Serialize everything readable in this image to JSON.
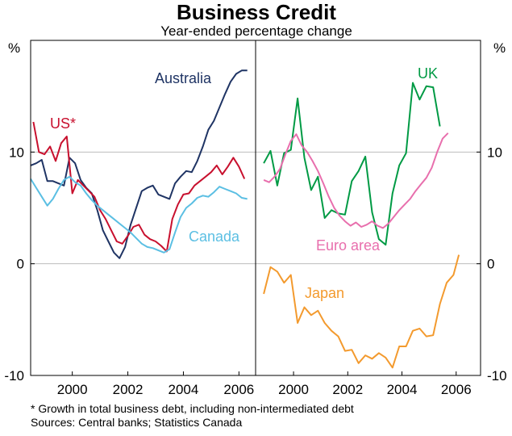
{
  "chart_data": {
    "type": "line",
    "title": "Business Credit",
    "subtitle": "Year-ended percentage change",
    "y_unit": "%",
    "ylim": [
      -10,
      20
    ],
    "y_ticks": [
      {
        "value": 10,
        "label": "10"
      },
      {
        "value": 0,
        "label": "0"
      },
      {
        "value": -10,
        "label": "-10"
      }
    ],
    "x_ticks": [
      {
        "value": 2000,
        "label": "2000"
      },
      {
        "value": 2002,
        "label": "2002"
      },
      {
        "value": 2004,
        "label": "2004"
      },
      {
        "value": 2006,
        "label": "2006"
      }
    ],
    "grid": true,
    "panels": [
      {
        "xlim": [
          1998.5,
          2006.6
        ],
        "series": [
          {
            "name": "Australia",
            "color": "#1f3464",
            "points": [
              [
                1998.5,
                8.8
              ],
              [
                1998.7,
                9.0
              ],
              [
                1998.9,
                9.3
              ],
              [
                1999.1,
                7.4
              ],
              [
                1999.3,
                7.4
              ],
              [
                1999.5,
                7.2
              ],
              [
                1999.7,
                7.0
              ],
              [
                1999.9,
                9.5
              ],
              [
                2000.1,
                9.0
              ],
              [
                2000.3,
                7.5
              ],
              [
                2000.5,
                6.8
              ],
              [
                2000.7,
                6.3
              ],
              [
                2000.9,
                4.8
              ],
              [
                2001.1,
                3.0
              ],
              [
                2001.3,
                2.0
              ],
              [
                2001.5,
                1.0
              ],
              [
                2001.7,
                0.5
              ],
              [
                2001.9,
                1.5
              ],
              [
                2002.1,
                3.5
              ],
              [
                2002.3,
                5.0
              ],
              [
                2002.5,
                6.5
              ],
              [
                2002.7,
                6.8
              ],
              [
                2002.9,
                7.0
              ],
              [
                2003.1,
                6.2
              ],
              [
                2003.3,
                6.0
              ],
              [
                2003.5,
                5.8
              ],
              [
                2003.7,
                7.2
              ],
              [
                2003.9,
                7.8
              ],
              [
                2004.1,
                8.3
              ],
              [
                2004.3,
                8.2
              ],
              [
                2004.5,
                9.2
              ],
              [
                2004.7,
                10.5
              ],
              [
                2004.9,
                12.0
              ],
              [
                2005.1,
                12.8
              ],
              [
                2005.3,
                14.0
              ],
              [
                2005.5,
                15.2
              ],
              [
                2005.7,
                16.3
              ],
              [
                2005.9,
                17.0
              ],
              [
                2006.1,
                17.3
              ],
              [
                2006.3,
                17.3
              ]
            ]
          },
          {
            "name": "US*",
            "color": "#c8102e",
            "points": [
              [
                1998.6,
                12.7
              ],
              [
                1998.8,
                10.0
              ],
              [
                1999.0,
                9.8
              ],
              [
                1999.2,
                10.5
              ],
              [
                1999.4,
                9.2
              ],
              [
                1999.6,
                10.8
              ],
              [
                1999.8,
                11.4
              ],
              [
                2000.0,
                6.3
              ],
              [
                2000.2,
                7.5
              ],
              [
                2000.4,
                7.0
              ],
              [
                2000.6,
                6.5
              ],
              [
                2000.8,
                6.0
              ],
              [
                2001.0,
                4.8
              ],
              [
                2001.2,
                4.0
              ],
              [
                2001.4,
                3.0
              ],
              [
                2001.6,
                2.0
              ],
              [
                2001.8,
                1.8
              ],
              [
                2002.0,
                2.5
              ],
              [
                2002.2,
                3.3
              ],
              [
                2002.4,
                3.5
              ],
              [
                2002.6,
                2.6
              ],
              [
                2002.8,
                2.2
              ],
              [
                2003.0,
                2.0
              ],
              [
                2003.2,
                1.6
              ],
              [
                2003.4,
                1.1
              ],
              [
                2003.6,
                4.0
              ],
              [
                2003.8,
                5.3
              ],
              [
                2004.0,
                6.2
              ],
              [
                2004.2,
                6.3
              ],
              [
                2004.4,
                7.0
              ],
              [
                2004.6,
                7.4
              ],
              [
                2004.8,
                7.8
              ],
              [
                2005.0,
                8.2
              ],
              [
                2005.2,
                8.8
              ],
              [
                2005.4,
                8.0
              ],
              [
                2005.6,
                8.7
              ],
              [
                2005.8,
                9.5
              ],
              [
                2006.0,
                8.7
              ],
              [
                2006.2,
                7.6
              ]
            ]
          },
          {
            "name": "Canada",
            "color": "#5bbfe3",
            "points": [
              [
                1998.5,
                7.6
              ],
              [
                1998.7,
                6.8
              ],
              [
                1998.9,
                6.0
              ],
              [
                1999.1,
                5.2
              ],
              [
                1999.3,
                5.8
              ],
              [
                1999.5,
                6.7
              ],
              [
                1999.7,
                7.5
              ],
              [
                1999.9,
                7.8
              ],
              [
                2000.1,
                7.3
              ],
              [
                2000.3,
                7.0
              ],
              [
                2000.5,
                6.3
              ],
              [
                2000.7,
                5.7
              ],
              [
                2000.9,
                5.2
              ],
              [
                2001.1,
                4.8
              ],
              [
                2001.3,
                4.4
              ],
              [
                2001.5,
                4.0
              ],
              [
                2001.7,
                3.6
              ],
              [
                2001.9,
                3.2
              ],
              [
                2002.1,
                2.8
              ],
              [
                2002.3,
                2.3
              ],
              [
                2002.5,
                1.8
              ],
              [
                2002.7,
                1.5
              ],
              [
                2002.9,
                1.4
              ],
              [
                2003.1,
                1.2
              ],
              [
                2003.3,
                1.0
              ],
              [
                2003.5,
                1.3
              ],
              [
                2003.7,
                2.8
              ],
              [
                2003.9,
                4.2
              ],
              [
                2004.1,
                5.0
              ],
              [
                2004.3,
                5.4
              ],
              [
                2004.5,
                5.9
              ],
              [
                2004.7,
                6.1
              ],
              [
                2004.9,
                6.0
              ],
              [
                2005.1,
                6.4
              ],
              [
                2005.3,
                6.9
              ],
              [
                2005.5,
                6.7
              ],
              [
                2005.7,
                6.5
              ],
              [
                2005.9,
                6.3
              ],
              [
                2006.1,
                5.9
              ],
              [
                2006.3,
                5.8
              ]
            ]
          }
        ],
        "labels": [
          {
            "text": "Australia",
            "series": "Australia"
          },
          {
            "text": "US*",
            "series": "US*"
          },
          {
            "text": "Canada",
            "series": "Canada"
          }
        ]
      },
      {
        "xlim": [
          1998.6,
          2006.9
        ],
        "series": [
          {
            "name": "UK",
            "color": "#009a44",
            "points": [
              [
                1998.9,
                9.0
              ],
              [
                1999.15,
                10.1
              ],
              [
                1999.4,
                7.0
              ],
              [
                1999.65,
                9.9
              ],
              [
                1999.9,
                10.2
              ],
              [
                2000.15,
                14.8
              ],
              [
                2000.4,
                9.5
              ],
              [
                2000.65,
                6.6
              ],
              [
                2000.9,
                7.8
              ],
              [
                2001.15,
                4.1
              ],
              [
                2001.4,
                4.8
              ],
              [
                2001.65,
                4.5
              ],
              [
                2001.9,
                4.4
              ],
              [
                2002.15,
                7.4
              ],
              [
                2002.4,
                8.3
              ],
              [
                2002.65,
                9.6
              ],
              [
                2002.9,
                4.6
              ],
              [
                2003.15,
                2.2
              ],
              [
                2003.4,
                1.7
              ],
              [
                2003.65,
                6.3
              ],
              [
                2003.9,
                8.8
              ],
              [
                2004.15,
                9.9
              ],
              [
                2004.4,
                16.2
              ],
              [
                2004.65,
                14.7
              ],
              [
                2004.9,
                15.9
              ],
              [
                2005.15,
                15.8
              ],
              [
                2005.4,
                12.3
              ]
            ]
          },
          {
            "name": "Euro area",
            "color": "#e86fad",
            "points": [
              [
                1998.9,
                7.5
              ],
              [
                1999.1,
                7.3
              ],
              [
                1999.3,
                7.8
              ],
              [
                1999.5,
                8.5
              ],
              [
                1999.7,
                9.8
              ],
              [
                1999.9,
                11.0
              ],
              [
                2000.1,
                11.6
              ],
              [
                2000.3,
                10.6
              ],
              [
                2000.5,
                10.0
              ],
              [
                2000.7,
                9.2
              ],
              [
                2000.9,
                8.3
              ],
              [
                2001.1,
                7.2
              ],
              [
                2001.3,
                6.0
              ],
              [
                2001.5,
                5.0
              ],
              [
                2001.7,
                4.3
              ],
              [
                2001.9,
                3.8
              ],
              [
                2002.1,
                3.4
              ],
              [
                2002.3,
                3.7
              ],
              [
                2002.5,
                3.3
              ],
              [
                2002.7,
                3.5
              ],
              [
                2002.9,
                3.8
              ],
              [
                2003.1,
                3.4
              ],
              [
                2003.3,
                3.2
              ],
              [
                2003.5,
                3.6
              ],
              [
                2003.7,
                4.2
              ],
              [
                2003.9,
                4.8
              ],
              [
                2004.1,
                5.3
              ],
              [
                2004.3,
                5.8
              ],
              [
                2004.5,
                6.5
              ],
              [
                2004.7,
                7.1
              ],
              [
                2004.9,
                7.7
              ],
              [
                2005.1,
                8.6
              ],
              [
                2005.3,
                10.0
              ],
              [
                2005.5,
                11.2
              ],
              [
                2005.7,
                11.7
              ]
            ]
          },
          {
            "name": "Japan",
            "color": "#f39a2e",
            "points": [
              [
                1998.9,
                -2.7
              ],
              [
                1999.15,
                -0.3
              ],
              [
                1999.4,
                -0.7
              ],
              [
                1999.65,
                -1.7
              ],
              [
                1999.9,
                -1.0
              ],
              [
                2000.15,
                -5.3
              ],
              [
                2000.4,
                -3.9
              ],
              [
                2000.65,
                -4.6
              ],
              [
                2000.9,
                -4.2
              ],
              [
                2001.15,
                -5.3
              ],
              [
                2001.4,
                -6.0
              ],
              [
                2001.65,
                -6.5
              ],
              [
                2001.9,
                -7.8
              ],
              [
                2002.15,
                -7.7
              ],
              [
                2002.4,
                -8.9
              ],
              [
                2002.65,
                -8.2
              ],
              [
                2002.9,
                -8.5
              ],
              [
                2003.15,
                -8.0
              ],
              [
                2003.4,
                -8.4
              ],
              [
                2003.65,
                -9.3
              ],
              [
                2003.9,
                -7.4
              ],
              [
                2004.15,
                -7.4
              ],
              [
                2004.4,
                -6.0
              ],
              [
                2004.65,
                -5.8
              ],
              [
                2004.9,
                -6.5
              ],
              [
                2005.15,
                -6.4
              ],
              [
                2005.4,
                -3.6
              ],
              [
                2005.65,
                -1.7
              ],
              [
                2005.9,
                -1.0
              ],
              [
                2006.1,
                0.8
              ]
            ]
          }
        ],
        "labels": [
          {
            "text": "UK",
            "series": "UK"
          },
          {
            "text": "Euro area",
            "series": "Euro area"
          },
          {
            "text": "Japan",
            "series": "Japan"
          }
        ]
      }
    ],
    "footnote": "*   Growth in total business debt, including non-intermediated debt",
    "sources": "Sources: Central banks; Statistics Canada"
  }
}
